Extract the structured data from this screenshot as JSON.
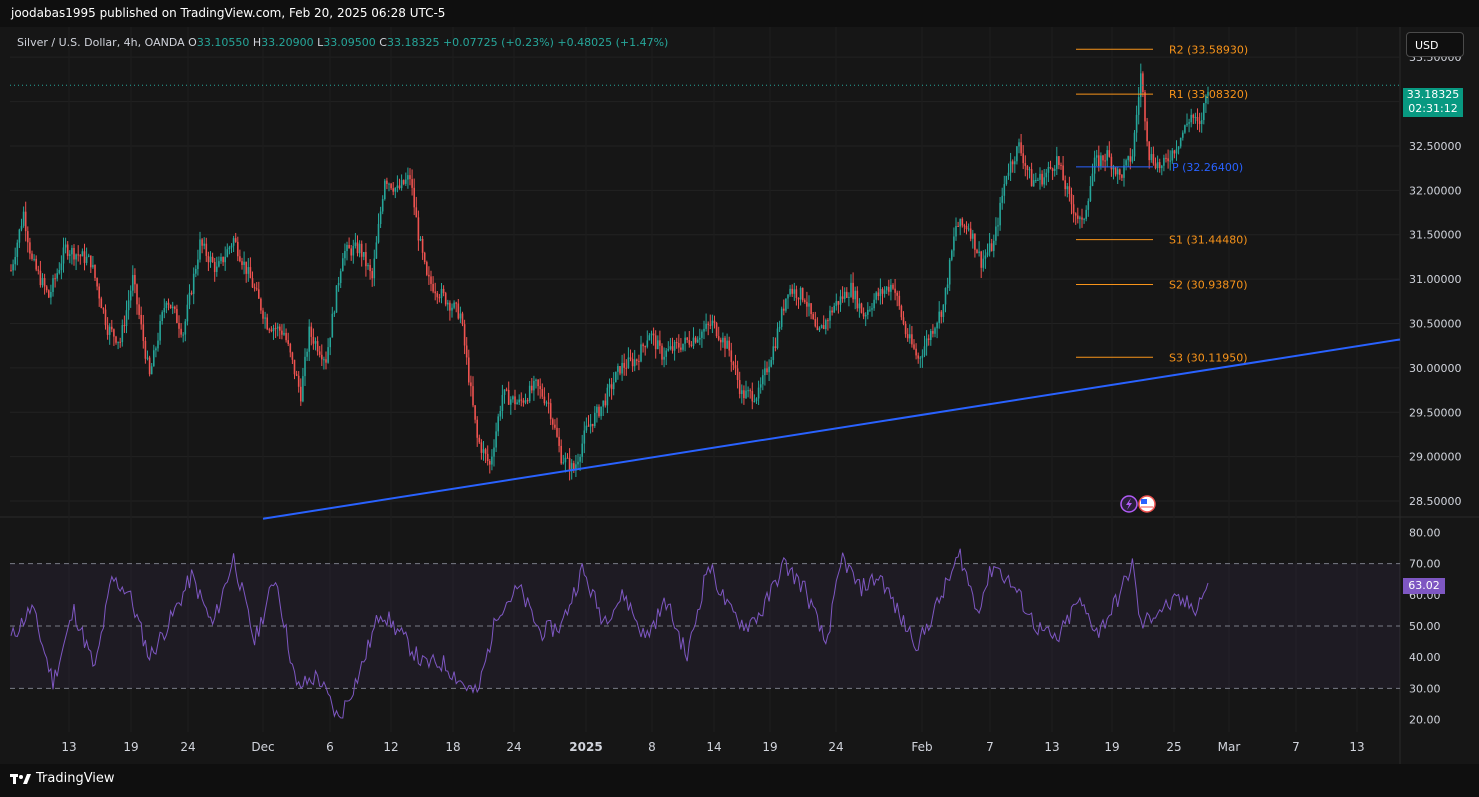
{
  "header": {
    "publisher_line": "joodabas1995 published on TradingView.com, Feb 20, 2025 06:28 UTC-5"
  },
  "legend": {
    "symbol": "Silver / U.S. Dollar, 4h, OANDA",
    "o_label": "O",
    "o_value": "33.10550",
    "h_label": "H",
    "h_value": "33.20900",
    "l_label": "L",
    "l_value": "33.09500",
    "c_label": "C",
    "c_value": "33.18325",
    "change": "+0.07725 (+0.23%)",
    "change2": "+0.48025 (+1.47%)"
  },
  "currency_button": "USD",
  "last_price": {
    "value": "33.18325",
    "countdown": "02:31:12"
  },
  "rsi_last": "63.02",
  "footer": {
    "brand": "TradingView"
  },
  "colors": {
    "up": "#26a69a",
    "down": "#ef5350",
    "pivot_orange": "#f7931a",
    "pivot_blue": "#2962ff",
    "trendline": "#2962ff",
    "rsi_line": "#7e57c2",
    "rsi_band": "#7e57c2"
  },
  "chart_data": [
    {
      "type": "candlestick",
      "title": "Silver / U.S. Dollar, 4h, OANDA",
      "y_ticks": [
        "33.50000",
        "33.00000",
        "32.50000",
        "32.00000",
        "31.50000",
        "31.00000",
        "30.50000",
        "30.00000",
        "29.50000",
        "29.00000",
        "28.50000"
      ],
      "ylim": [
        28.32,
        33.84
      ],
      "x_ticks": [
        "13",
        "19",
        "24",
        "Dec",
        "6",
        "12",
        "18",
        "24",
        "2025",
        "8",
        "14",
        "19",
        "24",
        "Feb",
        "7",
        "13",
        "19",
        "25",
        "Mar",
        "7",
        "13"
      ],
      "trend_path": [
        [
          0,
          31.1
        ],
        [
          6,
          31.75
        ],
        [
          10,
          31.2
        ],
        [
          18,
          30.8
        ],
        [
          26,
          31.35
        ],
        [
          38,
          31.2
        ],
        [
          46,
          30.45
        ],
        [
          52,
          30.3
        ],
        [
          58,
          31.0
        ],
        [
          66,
          29.9
        ],
        [
          74,
          30.8
        ],
        [
          82,
          30.4
        ],
        [
          90,
          31.4
        ],
        [
          98,
          31.1
        ],
        [
          106,
          31.45
        ],
        [
          114,
          31.0
        ],
        [
          122,
          30.5
        ],
        [
          130,
          30.4
        ],
        [
          138,
          29.7
        ],
        [
          142,
          30.4
        ],
        [
          150,
          30.1
        ],
        [
          158,
          31.3
        ],
        [
          166,
          31.35
        ],
        [
          172,
          31.0
        ],
        [
          178,
          32.15
        ],
        [
          184,
          32.0
        ],
        [
          190,
          32.15
        ],
        [
          194,
          31.5
        ],
        [
          198,
          31.0
        ],
        [
          206,
          30.8
        ],
        [
          214,
          30.6
        ],
        [
          222,
          29.2
        ],
        [
          228,
          28.9
        ],
        [
          234,
          29.7
        ],
        [
          242,
          29.6
        ],
        [
          250,
          29.8
        ],
        [
          256,
          29.6
        ],
        [
          262,
          29.0
        ],
        [
          268,
          28.85
        ],
        [
          274,
          29.3
        ],
        [
          282,
          29.6
        ],
        [
          290,
          30.0
        ],
        [
          298,
          30.1
        ],
        [
          304,
          30.4
        ],
        [
          310,
          30.15
        ],
        [
          318,
          30.25
        ],
        [
          326,
          30.35
        ],
        [
          334,
          30.5
        ],
        [
          342,
          30.2
        ],
        [
          348,
          29.7
        ],
        [
          356,
          29.7
        ],
        [
          364,
          30.3
        ],
        [
          370,
          30.9
        ],
        [
          378,
          30.8
        ],
        [
          384,
          30.35
        ],
        [
          392,
          30.7
        ],
        [
          400,
          30.9
        ],
        [
          406,
          30.6
        ],
        [
          412,
          30.8
        ],
        [
          420,
          30.95
        ],
        [
          426,
          30.4
        ],
        [
          432,
          30.1
        ],
        [
          438,
          30.4
        ],
        [
          444,
          30.7
        ],
        [
          450,
          31.6
        ],
        [
          456,
          31.6
        ],
        [
          462,
          31.2
        ],
        [
          468,
          31.4
        ],
        [
          474,
          32.2
        ],
        [
          480,
          32.5
        ],
        [
          486,
          32.1
        ],
        [
          492,
          32.15
        ],
        [
          498,
          32.35
        ],
        [
          504,
          31.9
        ],
        [
          510,
          31.6
        ],
        [
          516,
          32.3
        ],
        [
          522,
          32.4
        ],
        [
          528,
          32.15
        ],
        [
          534,
          32.4
        ],
        [
          538,
          33.3
        ],
        [
          542,
          32.4
        ],
        [
          548,
          32.25
        ],
        [
          556,
          32.55
        ],
        [
          562,
          32.85
        ],
        [
          566,
          32.7
        ],
        [
          570,
          33.18
        ]
      ],
      "pivots": [
        {
          "label": "R2",
          "value": "33.58930"
        },
        {
          "label": "R1",
          "value": "33.08320"
        },
        {
          "label": "P",
          "value": "32.26400"
        },
        {
          "label": "S1",
          "value": "31.44480"
        },
        {
          "label": "S2",
          "value": "30.93870"
        },
        {
          "label": "S3",
          "value": "30.11950"
        }
      ],
      "trendline": {
        "from_date": "Nov 29",
        "from_price": 28.3,
        "to_date": "Mar 17",
        "to_price": 30.32
      }
    },
    {
      "type": "line",
      "title": "RSI",
      "y_ticks": [
        "80.00",
        "70.00",
        "60.00",
        "50.00",
        "40.00",
        "30.00",
        "20.00"
      ],
      "ylim": [
        16,
        84
      ],
      "bands": [
        30,
        50,
        70
      ],
      "trend_path": [
        [
          0,
          46
        ],
        [
          10,
          56
        ],
        [
          20,
          32
        ],
        [
          30,
          55
        ],
        [
          40,
          36
        ],
        [
          48,
          65
        ],
        [
          56,
          61
        ],
        [
          66,
          40
        ],
        [
          76,
          52
        ],
        [
          86,
          66
        ],
        [
          96,
          50
        ],
        [
          106,
          72
        ],
        [
          116,
          45
        ],
        [
          126,
          66
        ],
        [
          136,
          30
        ],
        [
          146,
          34
        ],
        [
          156,
          20
        ],
        [
          166,
          35
        ],
        [
          176,
          55
        ],
        [
          186,
          47
        ],
        [
          196,
          38
        ],
        [
          206,
          38
        ],
        [
          216,
          31
        ],
        [
          222,
          28
        ],
        [
          232,
          55
        ],
        [
          242,
          62
        ],
        [
          252,
          48
        ],
        [
          262,
          50
        ],
        [
          272,
          68
        ],
        [
          282,
          52
        ],
        [
          292,
          60
        ],
        [
          302,
          46
        ],
        [
          312,
          58
        ],
        [
          322,
          40
        ],
        [
          332,
          70
        ],
        [
          342,
          55
        ],
        [
          350,
          50
        ],
        [
          358,
          55
        ],
        [
          368,
          70
        ],
        [
          378,
          62
        ],
        [
          388,
          44
        ],
        [
          396,
          72
        ],
        [
          404,
          62
        ],
        [
          414,
          66
        ],
        [
          424,
          52
        ],
        [
          432,
          44
        ],
        [
          442,
          58
        ],
        [
          452,
          73
        ],
        [
          460,
          55
        ],
        [
          468,
          70
        ],
        [
          478,
          62
        ],
        [
          488,
          50
        ],
        [
          498,
          45
        ],
        [
          508,
          58
        ],
        [
          518,
          48
        ],
        [
          528,
          60
        ],
        [
          534,
          70
        ],
        [
          538,
          50
        ],
        [
          546,
          55
        ],
        [
          556,
          58
        ],
        [
          564,
          56
        ],
        [
          570,
          63
        ]
      ]
    }
  ]
}
